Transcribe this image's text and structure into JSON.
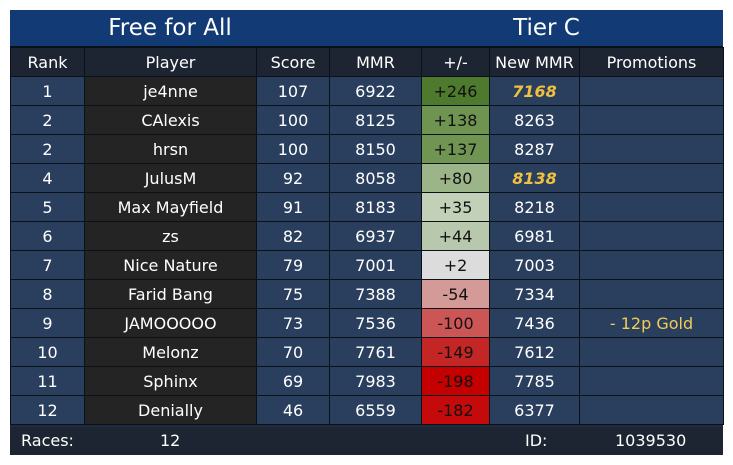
{
  "header": {
    "mode": "Free for All",
    "tier": "Tier C"
  },
  "columns": [
    "Rank",
    "Player",
    "Score",
    "MMR",
    "+/-",
    "New MMR",
    "Promotions"
  ],
  "rows": [
    {
      "rank": "1",
      "player": "je4nne",
      "score": "107",
      "mmr": "6922",
      "delta": "+246",
      "delta_color": "#4e7a2e",
      "new_mmr": "7168",
      "new_mmr_highlight": true,
      "promotion": ""
    },
    {
      "rank": "2",
      "player": "CAlexis",
      "score": "100",
      "mmr": "8125",
      "delta": "+138",
      "delta_color": "#6f9452",
      "new_mmr": "8263",
      "new_mmr_highlight": false,
      "promotion": ""
    },
    {
      "rank": "2",
      "player": "hrsn",
      "score": "100",
      "mmr": "8150",
      "delta": "+137",
      "delta_color": "#709553",
      "new_mmr": "8287",
      "new_mmr_highlight": false,
      "promotion": ""
    },
    {
      "rank": "4",
      "player": "JulusM",
      "score": "92",
      "mmr": "8058",
      "delta": "+80",
      "delta_color": "#9cb588",
      "new_mmr": "8138",
      "new_mmr_highlight": true,
      "promotion": ""
    },
    {
      "rank": "5",
      "player": "Max Mayfield",
      "score": "91",
      "mmr": "8183",
      "delta": "+35",
      "delta_color": "#c2d0b8",
      "new_mmr": "8218",
      "new_mmr_highlight": false,
      "promotion": ""
    },
    {
      "rank": "6",
      "player": "zs",
      "score": "82",
      "mmr": "6937",
      "delta": "+44",
      "delta_color": "#b8c8ac",
      "new_mmr": "6981",
      "new_mmr_highlight": false,
      "promotion": ""
    },
    {
      "rank": "7",
      "player": "Nice Nature",
      "score": "79",
      "mmr": "7001",
      "delta": "+2",
      "delta_color": "#dcdcdc",
      "new_mmr": "7003",
      "new_mmr_highlight": false,
      "promotion": ""
    },
    {
      "rank": "8",
      "player": "Farid Bang",
      "score": "75",
      "mmr": "7388",
      "delta": "-54",
      "delta_color": "#d49a98",
      "new_mmr": "7334",
      "new_mmr_highlight": false,
      "promotion": ""
    },
    {
      "rank": "9",
      "player": "JAMOOOOO",
      "score": "73",
      "mmr": "7536",
      "delta": "-100",
      "delta_color": "#cc5656",
      "new_mmr": "7436",
      "new_mmr_highlight": false,
      "promotion": "- 12p Gold"
    },
    {
      "rank": "10",
      "player": "Melonz",
      "score": "70",
      "mmr": "7761",
      "delta": "-149",
      "delta_color": "#c42626",
      "new_mmr": "7612",
      "new_mmr_highlight": false,
      "promotion": ""
    },
    {
      "rank": "11",
      "player": "Sphinx",
      "score": "69",
      "mmr": "7983",
      "delta": "-198",
      "delta_color": "#c40000",
      "new_mmr": "7785",
      "new_mmr_highlight": false,
      "promotion": ""
    },
    {
      "rank": "12",
      "player": "Denially",
      "score": "46",
      "mmr": "6559",
      "delta": "-182",
      "delta_color": "#c40a0a",
      "new_mmr": "6377",
      "new_mmr_highlight": false,
      "promotion": ""
    }
  ],
  "footer": {
    "races_label": "Races:",
    "races_value": "12",
    "id_label": "ID:",
    "id_value": "1039530"
  },
  "colors": {
    "title_bg": "#123a74",
    "row_bg": "#2a3f5e",
    "player_bg": "#242424",
    "highlight": "#f0c040"
  }
}
